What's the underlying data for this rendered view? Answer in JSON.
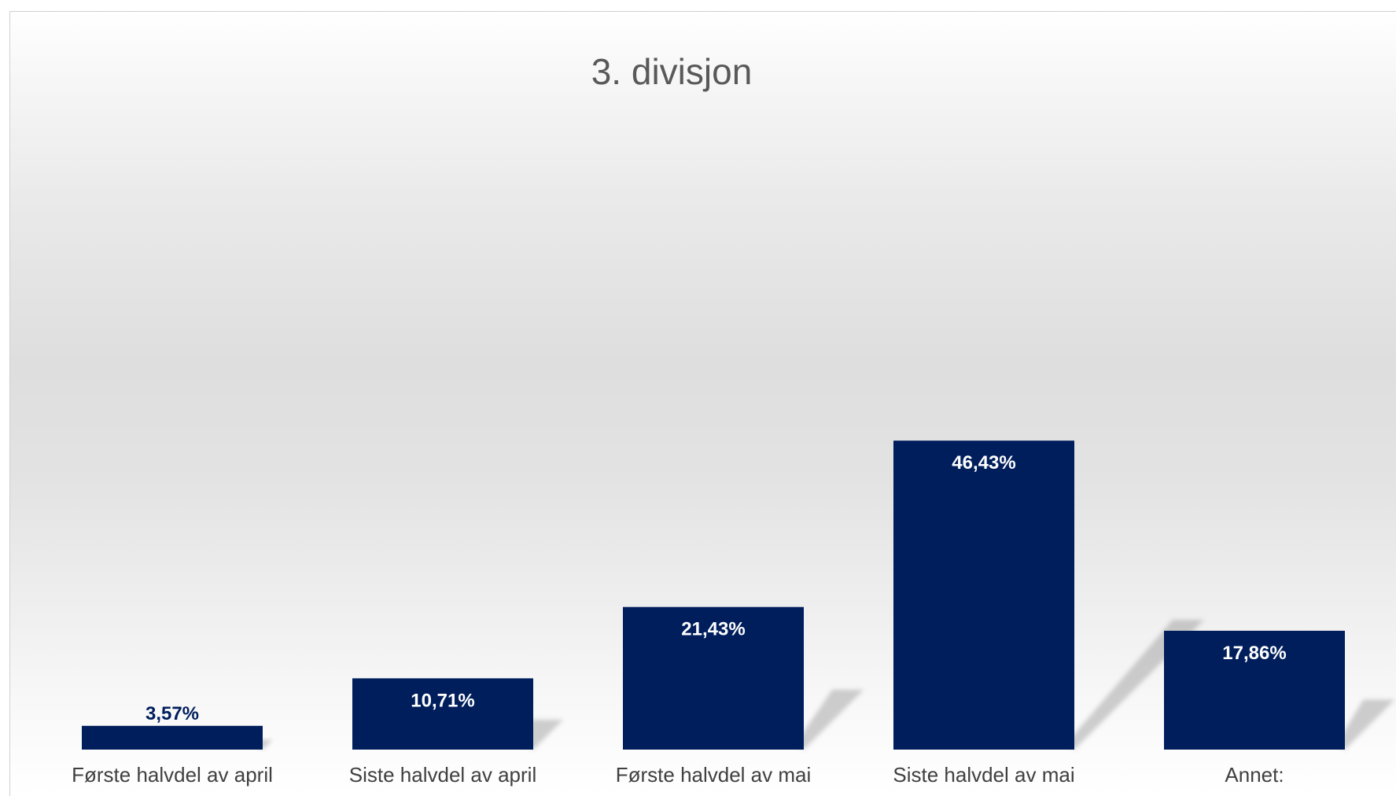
{
  "chart_data": {
    "type": "bar",
    "title": "3. divisjon",
    "categories": [
      "Første halvdel av april",
      "Siste halvdel av april",
      "Første halvdel av mai",
      "Siste halvdel av mai",
      "Annet:"
    ],
    "values": [
      3.57,
      10.71,
      21.43,
      46.43,
      17.86
    ],
    "value_labels": [
      "3,57%",
      "10,71%",
      "21,43%",
      "46,43%",
      "17,86%"
    ],
    "xlabel": "",
    "ylabel": "",
    "ylim": [
      0,
      50
    ],
    "grid": false,
    "legend": "none",
    "colors": {
      "bar": "#001E5C",
      "label_inside": "#ffffff",
      "label_outside": "#001E5C",
      "title": "#595959"
    }
  }
}
